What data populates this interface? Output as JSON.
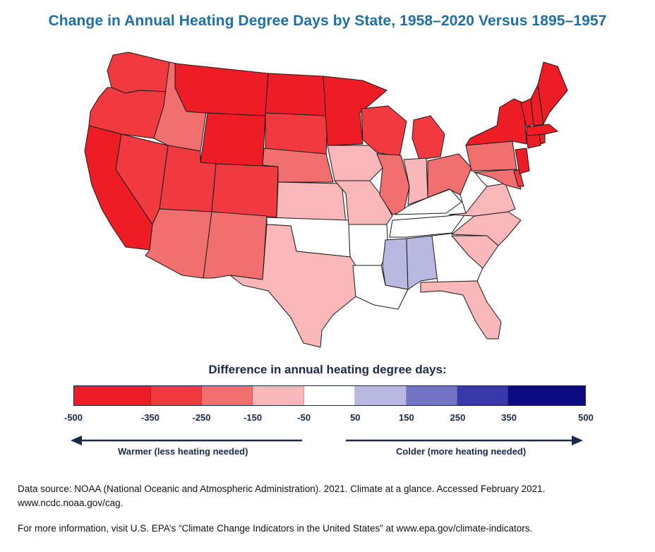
{
  "title": "Change in Annual Heating Degree Days by State, 1958–2020 Versus 1895–1957",
  "legend": {
    "title": "Difference in annual heating degree days:",
    "bins": [
      {
        "from": -500,
        "to": -350,
        "color": "#ee1c24"
      },
      {
        "from": -350,
        "to": -250,
        "color": "#f03a3f"
      },
      {
        "from": -250,
        "to": -150,
        "color": "#f26f70"
      },
      {
        "from": -150,
        "to": -50,
        "color": "#f9b7b9"
      },
      {
        "from": -50,
        "to": 50,
        "color": "#ffffff"
      },
      {
        "from": 50,
        "to": 150,
        "color": "#b8b8e0"
      },
      {
        "from": 150,
        "to": 250,
        "color": "#7474c4"
      },
      {
        "from": 250,
        "to": 350,
        "color": "#3838a8"
      },
      {
        "from": 350,
        "to": 500,
        "color": "#0c0c80"
      }
    ],
    "ticks": [
      "-500",
      "-350",
      "-250",
      "-150",
      "-50",
      "50",
      "150",
      "250",
      "350",
      "500"
    ],
    "warmer_label": "Warmer (less heating needed)",
    "colder_label": "Colder (more heating needed)"
  },
  "colors": {
    "title": "#1d6fa8",
    "text_dark": "#1a2a4a",
    "state_border": "#1a1a1a"
  },
  "states": {
    "WA": "#f03a3f",
    "OR": "#f03a3f",
    "CA": "#ee1c24",
    "NV": "#f03a3f",
    "ID": "#f26f70",
    "MT": "#ee1c24",
    "WY": "#ee1c24",
    "UT": "#f03a3f",
    "AZ": "#f26f70",
    "CO": "#f03a3f",
    "NM": "#f26f70",
    "ND": "#ee1c24",
    "SD": "#f03a3f",
    "NE": "#f26f70",
    "KS": "#f9b7b9",
    "OK": "#ffffff",
    "TX": "#f9b7b9",
    "MN": "#ee1c24",
    "IA": "#f9b7b9",
    "MO": "#f9b7b9",
    "AR": "#ffffff",
    "LA": "#ffffff",
    "WI": "#f03a3f",
    "IL": "#f26f70",
    "MS": "#b8b8e0",
    "MI": "#f03a3f",
    "IN": "#f9b7b9",
    "KY": "#ffffff",
    "TN": "#ffffff",
    "AL": "#b8b8e0",
    "OH": "#f26f70",
    "WV": "#ffffff",
    "GA": "#ffffff",
    "FL": "#f9b7b9",
    "SC": "#f9b7b9",
    "NC": "#f9b7b9",
    "VA": "#f9b7b9",
    "PA": "#f26f70",
    "NY": "#ee1c24",
    "MD": "#f26f70",
    "DE": "#f03a3f",
    "NJ": "#ee1c24",
    "CT": "#ee1c24",
    "RI": "#ee1c24",
    "MA": "#ee1c24",
    "VT": "#ee1c24",
    "NH": "#ee1c24",
    "ME": "#ee1c24"
  },
  "footer": {
    "source": "Data source: NOAA (National Oceanic and Atmospheric Administration). 2021. Climate at a glance. Accessed February 2021. www.ncdc.noaa.gov/cag.",
    "more_info": "For more information, visit U.S. EPA’s “Climate Change Indicators in the United States” at www.epa.gov/climate-indicators."
  }
}
